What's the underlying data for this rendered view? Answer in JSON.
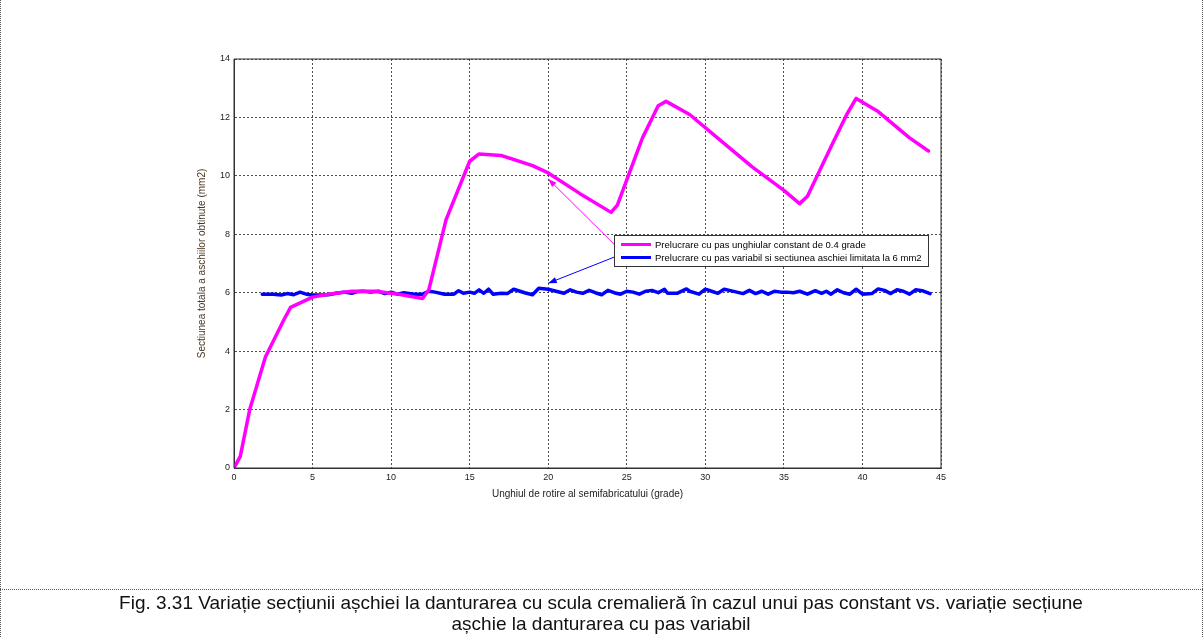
{
  "chart_data": {
    "type": "line",
    "xlabel": "Unghiul de rotire al semifabricatului (grade)",
    "ylabel": "Sectiunea totala a aschiilor obtinute (mm2)",
    "xlim": [
      0,
      45
    ],
    "xticks": [
      0,
      5,
      10,
      15,
      20,
      25,
      30,
      35,
      40,
      45
    ],
    "ylim": [
      0,
      14
    ],
    "yticks": [
      0,
      2,
      4,
      6,
      8,
      10,
      12,
      14
    ],
    "grid": true,
    "legend": "center right",
    "marker": "none",
    "line_style": "solid",
    "annotations": [
      "Fig. 3.31 Variație secțiunii așchiei la danturarea cu scula cremalieră în cazul unui pas constant vs. variație secțiune așchie la danturarea cu pas variabil"
    ],
    "series": [
      {
        "name": "Prelucrare cu pas unghiular constant de 0.4 grade",
        "color": "#ff00ff",
        "x": [
          0,
          0.4,
          1,
          2,
          3.2,
          3.6,
          5,
          6,
          7.5,
          9,
          10.5,
          12,
          12.4,
          13.5,
          15,
          15.6,
          17,
          19,
          20,
          22,
          24,
          24.4,
          26,
          27,
          27.5,
          29,
          31,
          33,
          35,
          36,
          36.5,
          38,
          39,
          39.6,
          41,
          43,
          44.2
        ],
        "values": [
          0,
          0.4,
          2,
          3.8,
          5.1,
          5.5,
          5.85,
          5.95,
          6.05,
          6.05,
          5.95,
          5.8,
          6.1,
          8.5,
          10.5,
          10.75,
          10.7,
          10.35,
          10.1,
          9.4,
          8.75,
          9,
          11.3,
          12.4,
          12.55,
          12.1,
          11.2,
          10.3,
          9.5,
          9.05,
          9.3,
          11,
          12.1,
          12.65,
          12.2,
          11.3,
          10.85
        ]
      },
      {
        "name": "Prelucrare cu pas variabil si sectiunea aschiei limitata la 6 mm2",
        "color": "#0000ff",
        "x": [
          1.8,
          2.5,
          3,
          3.4,
          3.8,
          4.2,
          4.6,
          5,
          5.5,
          6,
          6.5,
          7,
          7.5,
          7.8,
          8.2,
          8.7,
          9.2,
          9.6,
          10,
          10.4,
          10.8,
          11.5,
          12,
          12.4,
          12.8,
          13.4,
          14,
          14.3,
          14.6,
          15,
          15.3,
          15.6,
          15.9,
          16.2,
          16.5,
          17,
          17.4,
          17.8,
          18.5,
          19,
          19.4,
          20,
          20.5,
          21,
          21.4,
          21.8,
          22.2,
          22.6,
          23,
          23.4,
          23.8,
          24.2,
          24.6,
          25,
          25.4,
          25.8,
          26.2,
          26.6,
          27,
          27.4,
          27.6,
          28.2,
          28.8,
          29,
          29.6,
          30,
          30.4,
          30.8,
          31.2,
          31.6,
          32,
          32.4,
          32.8,
          33.2,
          33.6,
          34,
          34.4,
          34.8,
          35.2,
          35.6,
          36,
          36.5,
          37,
          37.4,
          37.7,
          38,
          38.4,
          38.8,
          39.2,
          39.6,
          40,
          40.6,
          41,
          41.4,
          41.8,
          42.2,
          42.6,
          43,
          43.4,
          43.8,
          44.3
        ],
        "values": [
          5.95,
          5.95,
          5.92,
          5.97,
          5.93,
          6.02,
          5.95,
          5.92,
          5.92,
          5.93,
          5.98,
          6.02,
          5.98,
          6.03,
          6.05,
          6.02,
          6.05,
          5.97,
          6.02,
          5.95,
          6.0,
          5.95,
          5.95,
          6.05,
          6.02,
          5.95,
          5.95,
          6.07,
          5.98,
          6.02,
          5.98,
          6.1,
          5.98,
          6.12,
          5.95,
          5.98,
          5.97,
          6.12,
          6.0,
          5.93,
          6.15,
          6.12,
          6.05,
          5.98,
          6.1,
          6.02,
          5.98,
          6.08,
          6.0,
          5.93,
          6.08,
          6.0,
          5.95,
          6.05,
          6.02,
          5.95,
          6.05,
          6.08,
          6.0,
          6.12,
          5.98,
          5.98,
          6.13,
          6.05,
          5.95,
          6.12,
          6.05,
          5.98,
          6.12,
          6.07,
          6.02,
          5.97,
          6.08,
          5.97,
          6.05,
          5.95,
          6.05,
          6.02,
          6.02,
          6.0,
          6.05,
          5.95,
          6.07,
          5.98,
          6.05,
          5.95,
          6.1,
          6.0,
          5.95,
          6.12,
          5.95,
          5.97,
          6.13,
          6.08,
          5.97,
          6.1,
          6.05,
          5.95,
          6.1,
          6.07,
          5.97
        ]
      }
    ]
  }
}
